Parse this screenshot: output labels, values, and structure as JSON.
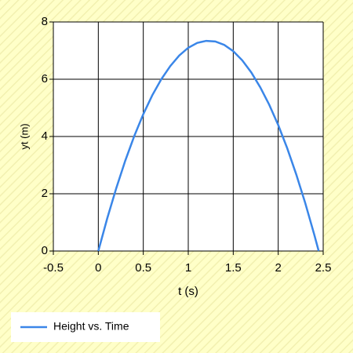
{
  "chart_data": {
    "type": "line",
    "xlabel": "t (s)",
    "ylabel": "yt (m)",
    "x": [
      0,
      0.1,
      0.2,
      0.3,
      0.4,
      0.5,
      0.6,
      0.7,
      0.8,
      0.9,
      1.0,
      1.1,
      1.2,
      1.3,
      1.4,
      1.5,
      1.6,
      1.7,
      1.8,
      1.9,
      2.0,
      2.1,
      2.2,
      2.3,
      2.4,
      2.45
    ],
    "series": [
      {
        "name": "Height vs. Time",
        "color": "#3a86e8",
        "values": [
          0,
          1.15,
          2.2,
          3.16,
          4.02,
          4.78,
          5.44,
          6.0,
          6.46,
          6.83,
          7.1,
          7.27,
          7.34,
          7.32,
          7.2,
          6.98,
          6.66,
          6.24,
          5.72,
          5.11,
          4.4,
          3.59,
          2.68,
          1.68,
          0.58,
          0
        ]
      }
    ],
    "xlim": [
      -0.5,
      2.5
    ],
    "ylim": [
      0,
      8
    ],
    "xticks": [
      -0.5,
      0,
      0.5,
      1,
      1.5,
      2,
      2.5
    ],
    "yticks": [
      0,
      2,
      4,
      6,
      8
    ],
    "grid": true,
    "legend": "bottom-left"
  }
}
